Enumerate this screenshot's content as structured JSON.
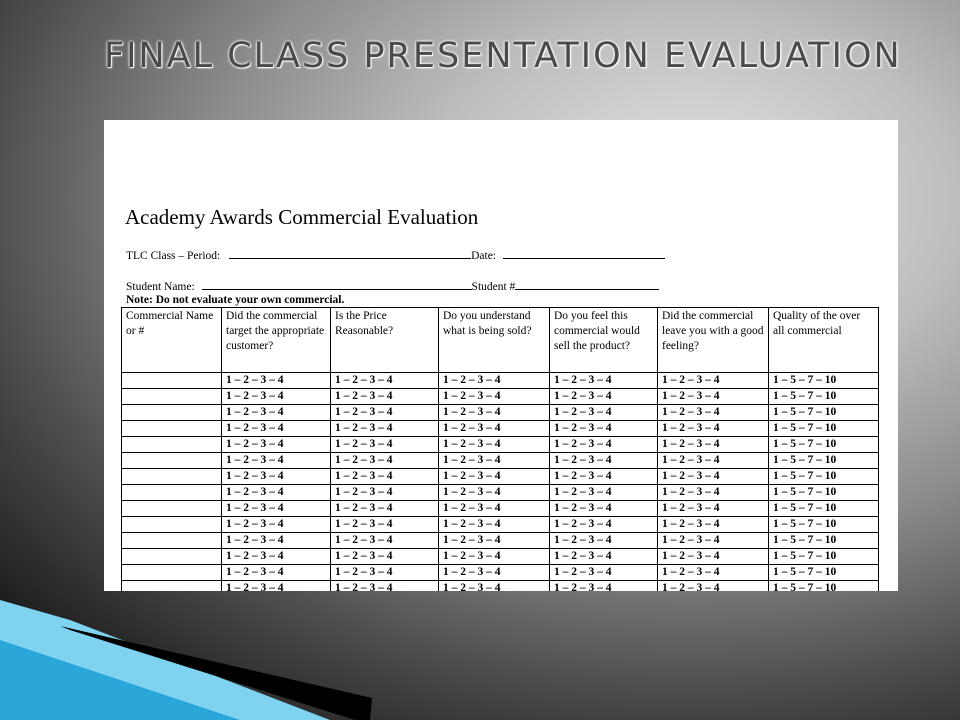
{
  "slide": {
    "title": "FINAL CLASS PRESENTATION EVALUATION"
  },
  "document": {
    "heading": "Academy Awards Commercial Evaluation",
    "class_period_label": "TLC Class – Period:",
    "date_label": "Date:",
    "student_name_label": "Student Name:",
    "student_number_label": "Student #",
    "note": "Note: Do not evaluate your own commercial."
  },
  "table": {
    "headers": [
      "Commercial Name or #",
      "Did the commercial target the appropriate customer?",
      "Is the Price Reasonable?",
      "Do you understand what is being sold?",
      "Do you feel this commercial would sell the product?",
      "Did the commercial leave you with a good feeling?",
      "Quality of the over all commercial"
    ],
    "scale_1_4": "1 – 2 – 3 – 4",
    "scale_quality": "1 – 5 – 7 – 10",
    "row_count": 14
  },
  "colors": {
    "decor_light_blue": "#7fd3f0",
    "decor_blue": "#2aa7d8",
    "decor_black": "#000000"
  }
}
